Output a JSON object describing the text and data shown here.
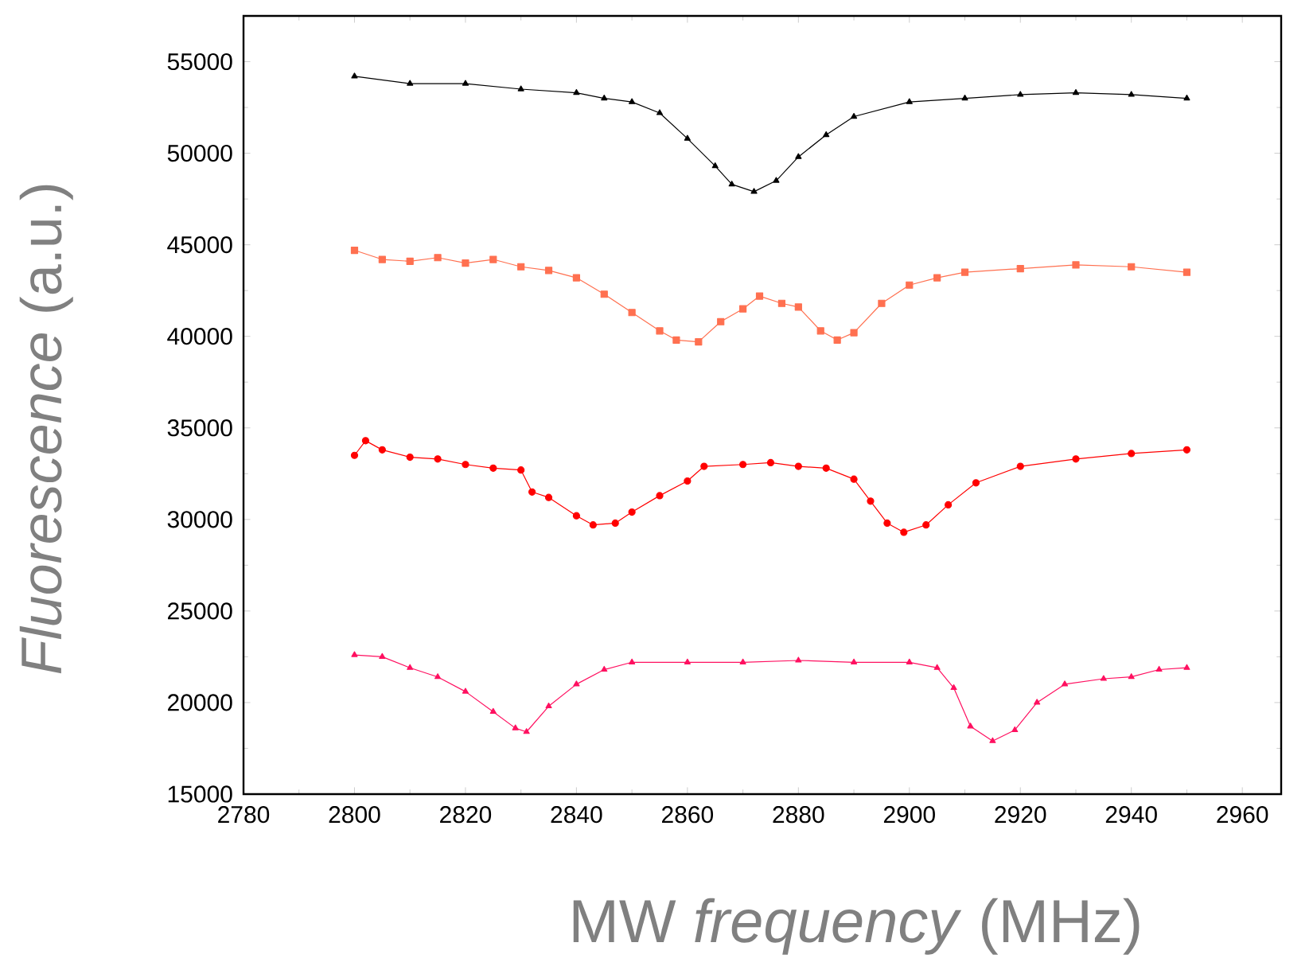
{
  "chart_data": {
    "type": "line",
    "xlabel": "MW *frequency* (MHz)",
    "ylabel": "*Fluorescence* (a.u.)",
    "xlim": [
      2780,
      2967
    ],
    "ylim": [
      15000,
      57500
    ],
    "xticks": [
      2780,
      2800,
      2820,
      2840,
      2860,
      2880,
      2900,
      2920,
      2940,
      2960
    ],
    "yticks": [
      15000,
      20000,
      25000,
      30000,
      35000,
      40000,
      45000,
      50000,
      55000
    ],
    "grid": false,
    "line_style": "solid",
    "series": [
      {
        "color": "#000000",
        "marker": "triangle",
        "x": [
          2800,
          2810,
          2820,
          2830,
          2840,
          2845,
          2850,
          2855,
          2860,
          2865,
          2868,
          2872,
          2876,
          2880,
          2885,
          2890,
          2900,
          2910,
          2920,
          2930,
          2940,
          2950
        ],
        "values": [
          54200,
          53800,
          53800,
          53500,
          53300,
          53000,
          52800,
          52200,
          50800,
          49300,
          48300,
          47900,
          48500,
          49800,
          51000,
          52000,
          52800,
          53000,
          53200,
          53300,
          53200,
          53000
        ]
      },
      {
        "color": "#ff7050",
        "marker": "square",
        "x": [
          2800,
          2805,
          2810,
          2815,
          2820,
          2825,
          2830,
          2835,
          2840,
          2845,
          2850,
          2855,
          2858,
          2862,
          2866,
          2870,
          2873,
          2877,
          2880,
          2884,
          2887,
          2890,
          2895,
          2900,
          2905,
          2910,
          2920,
          2930,
          2940,
          2950
        ],
        "values": [
          44700,
          44200,
          44100,
          44300,
          44000,
          44200,
          43800,
          43600,
          43200,
          42300,
          41300,
          40300,
          39800,
          39700,
          40800,
          41500,
          42200,
          41800,
          41600,
          40300,
          39800,
          40200,
          41800,
          42800,
          43200,
          43500,
          43700,
          43900,
          43800,
          43500
        ]
      },
      {
        "color": "#ff0000",
        "marker": "circle",
        "x": [
          2800,
          2802,
          2805,
          2810,
          2815,
          2820,
          2825,
          2830,
          2832,
          2835,
          2840,
          2843,
          2847,
          2850,
          2855,
          2860,
          2863,
          2870,
          2875,
          2880,
          2885,
          2890,
          2893,
          2896,
          2899,
          2903,
          2907,
          2912,
          2920,
          2930,
          2940,
          2950
        ],
        "values": [
          33500,
          34300,
          33800,
          33400,
          33300,
          33000,
          32800,
          32700,
          31500,
          31200,
          30200,
          29700,
          29800,
          30400,
          31300,
          32100,
          32900,
          33000,
          33100,
          32900,
          32800,
          32200,
          31000,
          29800,
          29300,
          29700,
          30800,
          32000,
          32900,
          33300,
          33600,
          33800
        ]
      },
      {
        "color": "#ff1060",
        "marker": "triangle",
        "x": [
          2800,
          2805,
          2810,
          2815,
          2820,
          2825,
          2829,
          2831,
          2835,
          2840,
          2845,
          2850,
          2860,
          2870,
          2880,
          2890,
          2900,
          2905,
          2908,
          2911,
          2915,
          2919,
          2923,
          2928,
          2935,
          2940,
          2945,
          2950
        ],
        "values": [
          22600,
          22500,
          21900,
          21400,
          20600,
          19500,
          18600,
          18400,
          19800,
          21000,
          21800,
          22200,
          22200,
          22200,
          22300,
          22200,
          22200,
          21900,
          20800,
          18700,
          17900,
          18500,
          20000,
          21000,
          21300,
          21400,
          21800,
          21900
        ]
      }
    ]
  }
}
